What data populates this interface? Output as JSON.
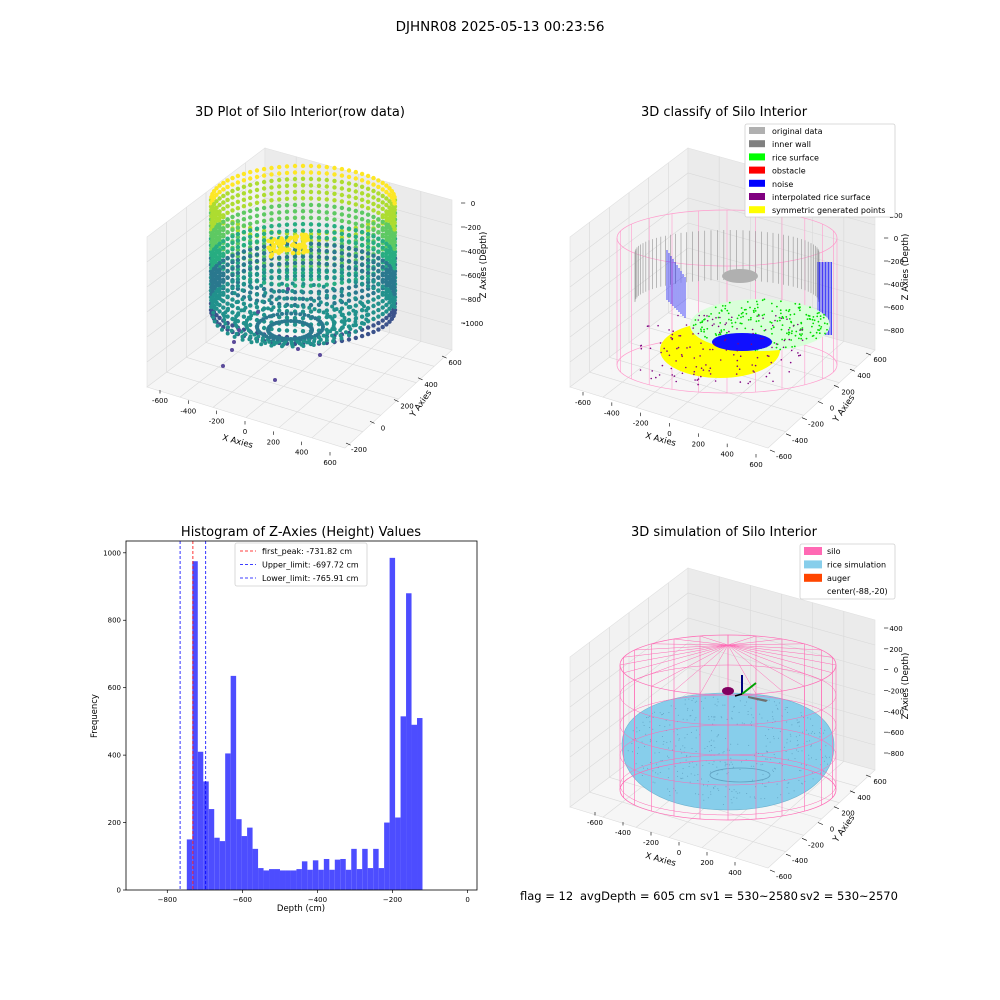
{
  "suptitle": "DJHNR08 2025-05-13 00:23:56",
  "panels": {
    "raw": {
      "title": "3D Plot of Silo Interior(row data)",
      "xlabel": "X Axies",
      "ylabel": "Y Axies",
      "zlabel": "Z Axies (Depth)",
      "xticks": [
        "-600",
        "-400",
        "-200",
        "0",
        "200",
        "400",
        "600"
      ],
      "yticks": [
        "-200",
        "0",
        "200",
        "400",
        "600"
      ],
      "zticks": [
        "0",
        "-200",
        "-400",
        "-600",
        "-800",
        "-1000"
      ]
    },
    "classify": {
      "title": "3D classify of Silo Interior",
      "xlabel": "X Axies",
      "ylabel": "Y Axies",
      "zlabel": "Z Axies (Depth)",
      "xticks": [
        "-600",
        "-400",
        "-200",
        "0",
        "200",
        "400",
        "600"
      ],
      "yticks": [
        "-600",
        "-400",
        "-200",
        "0",
        "200",
        "400",
        "600"
      ],
      "zticks": [
        "200",
        "0",
        "-200",
        "-400",
        "-600",
        "-800"
      ],
      "legend": [
        {
          "label": "original data",
          "color": "#b0b0b0"
        },
        {
          "label": "inner wall",
          "color": "#808080"
        },
        {
          "label": "rice surface",
          "color": "#00ff00"
        },
        {
          "label": "obstacle",
          "color": "#ff0000"
        },
        {
          "label": "noise",
          "color": "#0000ff"
        },
        {
          "label": "interpolated rice surface",
          "color": "#800080"
        },
        {
          "label": "symmetric generated points",
          "color": "#ffff00"
        }
      ]
    },
    "simulation": {
      "title": "3D simulation of Silo Interior",
      "xlabel": "X Axies",
      "ylabel": "Y Axies",
      "zlabel": "Z Axies (Depth)",
      "xticks": [
        "-600",
        "-400",
        "-200",
        "0",
        "200",
        "400"
      ],
      "yticks": [
        "-600",
        "-400",
        "-200",
        "0",
        "200",
        "400",
        "600"
      ],
      "zticks": [
        "400",
        "200",
        "0",
        "-200",
        "-400",
        "-600",
        "-800"
      ],
      "legend": [
        {
          "label": "silo",
          "color": "#ff69b4"
        },
        {
          "label": "rice simulation",
          "color": "#87ceeb"
        },
        {
          "label": "auger",
          "color": "#ff4500"
        },
        {
          "label": "center(-88,-20)",
          "color": "#ffffff"
        }
      ]
    }
  },
  "status_line": {
    "flag": "flag = 12",
    "avg_depth": "avgDepth = 605 cm",
    "sv1": "sv1 = 530~2580",
    "sv2": "sv2 = 530~2570"
  },
  "colors": {
    "hist_bar": "#4d4dff",
    "peak_line": "#ff0000",
    "limit_line": "#0000ff",
    "silo_wire": "#ff69b4",
    "rice_fill": "#87ceeb"
  },
  "chart_data": {
    "type": "bar",
    "title": "Histogram of Z-Axies (Height) Values",
    "xlabel": "Depth (cm)",
    "ylabel": "Frequency",
    "xlim": [
      -910,
      25
    ],
    "ylim": [
      0,
      1035
    ],
    "xticks": [
      -800,
      -600,
      -400,
      -200,
      0
    ],
    "yticks": [
      0,
      200,
      400,
      600,
      800,
      1000
    ],
    "bin_start": -748,
    "bin_width": 14.6,
    "values": [
      150,
      975,
      410,
      322,
      240,
      155,
      145,
      405,
      635,
      210,
      160,
      185,
      122,
      65,
      58,
      62,
      62,
      58,
      58,
      58,
      62,
      85,
      60,
      88,
      60,
      92,
      60,
      90,
      92,
      60,
      122,
      62,
      122,
      65,
      122,
      65,
      200,
      985,
      215,
      515,
      880,
      490,
      510
    ],
    "vlines": [
      {
        "label": "first_peak: -731.82 cm",
        "x": -731.82,
        "style": "red"
      },
      {
        "label": "Upper_limit: -697.72 cm",
        "x": -697.72,
        "style": "blue"
      },
      {
        "label": "Lower_limit: -765.91 cm",
        "x": -765.91,
        "style": "blue"
      }
    ],
    "legend_position": "upper center"
  }
}
